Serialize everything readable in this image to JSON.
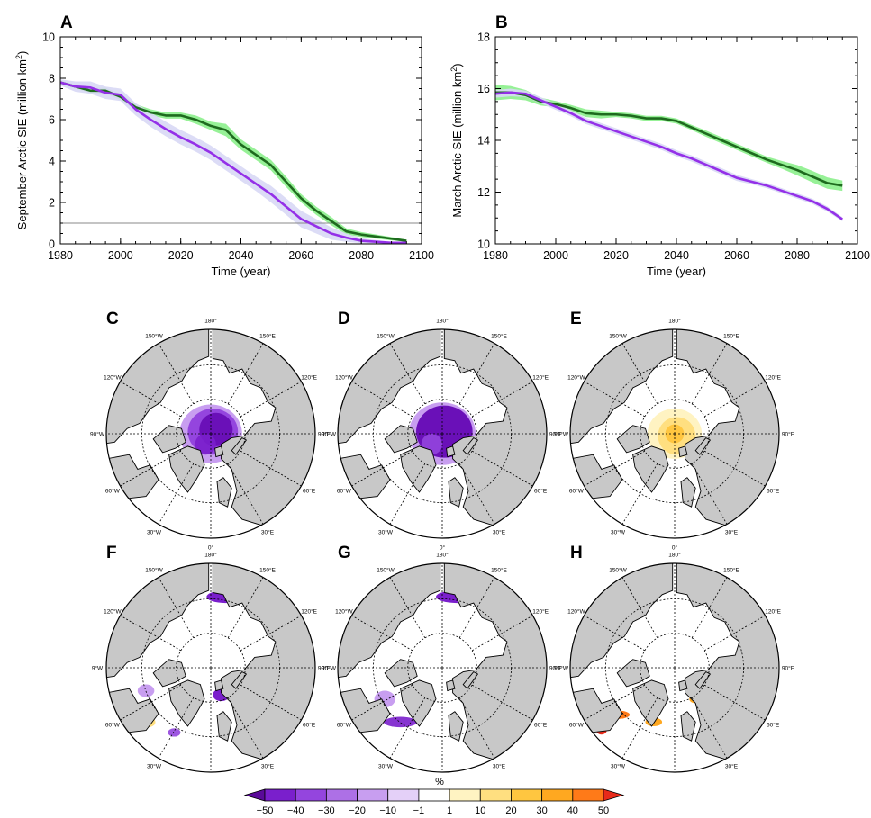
{
  "chart_data": [
    {
      "panel": "A",
      "type": "line",
      "xlabel": "Time (year)",
      "ylabel": "September Arctic SIE (million km",
      "ylabel_sup": "2",
      "ylabel_end": ")",
      "xlim": [
        1980,
        2100
      ],
      "ylim": [
        0,
        10
      ],
      "xticks": [
        1980,
        2000,
        2020,
        2040,
        2060,
        2080,
        2100
      ],
      "yticks": [
        0,
        2,
        4,
        6,
        8,
        10
      ],
      "reference_line": 1,
      "x": [
        1980,
        1985,
        1990,
        1995,
        2000,
        2005,
        2010,
        2015,
        2020,
        2025,
        2030,
        2035,
        2040,
        2045,
        2050,
        2055,
        2060,
        2065,
        2070,
        2075,
        2080,
        2085,
        2090,
        2095
      ],
      "series": [
        {
          "color": "#1e6b1e",
          "band_color": "#8cf08c",
          "values": [
            7.8,
            7.6,
            7.4,
            7.4,
            7.1,
            6.6,
            6.35,
            6.2,
            6.2,
            6.0,
            5.7,
            5.5,
            4.8,
            4.3,
            3.8,
            3.0,
            2.2,
            1.6,
            1.1,
            0.6,
            0.45,
            0.35,
            0.25,
            0.15
          ],
          "spread": [
            0.1,
            0.1,
            0.12,
            0.15,
            0.15,
            0.15,
            0.15,
            0.15,
            0.15,
            0.2,
            0.2,
            0.3,
            0.25,
            0.25,
            0.25,
            0.25,
            0.2,
            0.2,
            0.2,
            0.15,
            0.12,
            0.1,
            0.08,
            0.05
          ]
        },
        {
          "color": "#9430e8",
          "band_color": "#d8d8f5",
          "values": [
            7.8,
            7.6,
            7.55,
            7.3,
            7.2,
            6.5,
            6.0,
            5.55,
            5.15,
            4.8,
            4.4,
            3.9,
            3.4,
            2.9,
            2.4,
            1.8,
            1.2,
            0.85,
            0.5,
            0.3,
            0.15,
            0.1,
            0.05,
            0.05
          ],
          "spread": [
            0.15,
            0.25,
            0.3,
            0.3,
            0.3,
            0.3,
            0.35,
            0.35,
            0.35,
            0.35,
            0.35,
            0.35,
            0.35,
            0.35,
            0.4,
            0.4,
            0.4,
            0.35,
            0.3,
            0.2,
            0.12,
            0.08,
            0.05,
            0.03
          ]
        }
      ]
    },
    {
      "panel": "B",
      "type": "line",
      "xlabel": "Time (year)",
      "ylabel": "March Arctic SIE (million km",
      "ylabel_sup": "2",
      "ylabel_end": ")",
      "xlim": [
        1980,
        2100
      ],
      "ylim": [
        10,
        18
      ],
      "xticks": [
        1980,
        2000,
        2020,
        2040,
        2060,
        2080,
        2100
      ],
      "yticks": [
        10,
        12,
        14,
        16,
        18
      ],
      "x": [
        1980,
        1985,
        1990,
        1995,
        2000,
        2005,
        2010,
        2015,
        2020,
        2025,
        2030,
        2035,
        2040,
        2045,
        2050,
        2055,
        2060,
        2065,
        2070,
        2075,
        2080,
        2085,
        2090,
        2095
      ],
      "series": [
        {
          "color": "#1e6b1e",
          "band_color": "#8cf08c",
          "values": [
            15.85,
            15.85,
            15.75,
            15.5,
            15.4,
            15.25,
            15.05,
            15.0,
            15.0,
            14.95,
            14.85,
            14.85,
            14.75,
            14.5,
            14.25,
            14.0,
            13.75,
            13.5,
            13.25,
            13.05,
            12.85,
            12.6,
            12.35,
            12.25
          ],
          "spread": [
            0.3,
            0.25,
            0.2,
            0.15,
            0.12,
            0.12,
            0.15,
            0.15,
            0.1,
            0.1,
            0.1,
            0.1,
            0.1,
            0.1,
            0.12,
            0.12,
            0.12,
            0.12,
            0.12,
            0.15,
            0.2,
            0.22,
            0.22,
            0.2
          ]
        },
        {
          "color": "#9430e8",
          "band_color": "#d8d8f5",
          "values": [
            15.8,
            15.85,
            15.8,
            15.55,
            15.3,
            15.05,
            14.75,
            14.55,
            14.35,
            14.15,
            13.95,
            13.75,
            13.5,
            13.3,
            13.05,
            12.8,
            12.55,
            12.4,
            12.25,
            12.05,
            11.85,
            11.65,
            11.35,
            10.95
          ],
          "spread": [
            0.15,
            0.15,
            0.12,
            0.12,
            0.12,
            0.12,
            0.12,
            0.12,
            0.12,
            0.12,
            0.12,
            0.12,
            0.12,
            0.12,
            0.12,
            0.12,
            0.12,
            0.1,
            0.1,
            0.1,
            0.1,
            0.1,
            0.1,
            0.08
          ]
        }
      ]
    },
    {
      "panel": "C-H",
      "type": "heatmap",
      "maps": [
        {
          "label": "C",
          "anomaly": "decrease",
          "pattern": "central_arctic"
        },
        {
          "label": "D",
          "anomaly": "decrease",
          "pattern": "central_arctic_strong"
        },
        {
          "label": "E",
          "anomaly": "increase",
          "pattern": "central_arctic_weak"
        },
        {
          "label": "F",
          "anomaly": "decrease",
          "pattern": "marginal_seas"
        },
        {
          "label": "G",
          "anomaly": "decrease",
          "pattern": "marginal_seas_strong"
        },
        {
          "label": "H",
          "anomaly": "increase",
          "pattern": "ice_edge"
        }
      ],
      "longitude_labels": [
        "180°",
        "150°E",
        "120°E",
        "90°E",
        "60°E",
        "30°E",
        "0°",
        "30°W",
        "60°W",
        "90°W",
        "120°W",
        "150°W"
      ],
      "longitude_labels_F": [
        "180°",
        "150°E",
        "120°E",
        "90°E",
        "60°E",
        "30°E",
        "°",
        "30°W",
        "60°W",
        "9°W",
        "120°W",
        "150°W"
      ],
      "colorbar": {
        "title": "%",
        "ticks": [
          "−50",
          "−40",
          "−30",
          "−20",
          "−10",
          "−1",
          "1",
          "10",
          "20",
          "30",
          "40",
          "50"
        ],
        "colors": [
          "#5a0a99",
          "#7a1fcc",
          "#9445de",
          "#ad70e6",
          "#c89ef0",
          "#e4d0f8",
          "#ffffff",
          "#fff3c2",
          "#ffdf80",
          "#ffc640",
          "#ffa820",
          "#ff7a18",
          "#e82a1a"
        ]
      }
    }
  ],
  "colors": {
    "land": "#c8c8c8",
    "ocean": "#ffffff",
    "reference_line": "#888888"
  }
}
